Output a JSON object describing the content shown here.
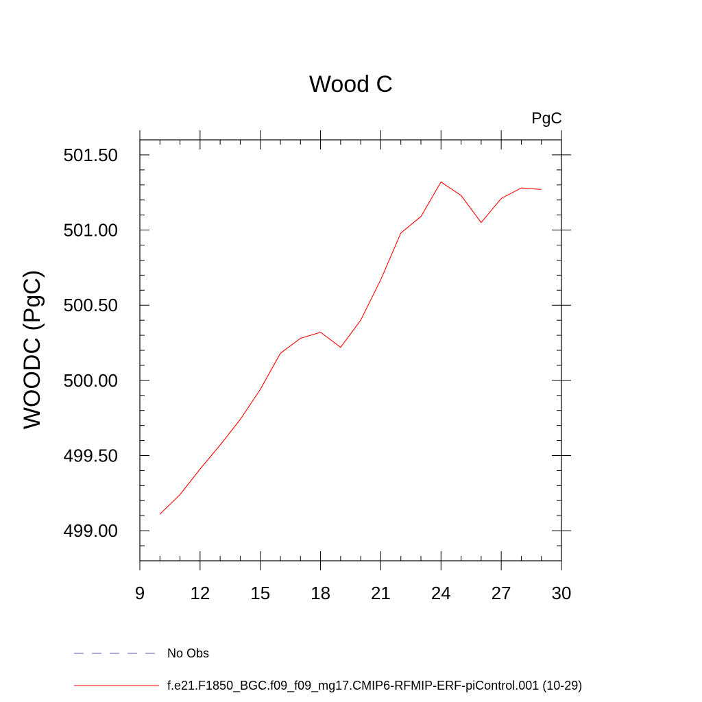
{
  "chart_data": {
    "type": "line",
    "title": "Wood C",
    "units_label": "PgC",
    "xlabel": "",
    "ylabel": "WOODC  (PgC)",
    "xlim": [
      9,
      30
    ],
    "ylim": [
      498.8,
      501.6
    ],
    "x_ticks": [
      9,
      12,
      15,
      18,
      21,
      24,
      27,
      30
    ],
    "x_tick_labels": [
      "9",
      "12",
      "15",
      "18",
      "21",
      "24",
      "27",
      "30"
    ],
    "y_ticks": [
      499.0,
      499.5,
      500.0,
      500.5,
      501.0,
      501.5
    ],
    "y_tick_labels": [
      "499.00",
      "499.50",
      "500.00",
      "500.50",
      "501.00",
      "501.50"
    ],
    "series": [
      {
        "name": "f.e21.F1850_BGC.f09_f09_mg17.CMIP6-RFMIP-ERF-piControl.001 (10-29)",
        "color": "#ff0000",
        "style": "solid",
        "x": [
          10,
          11,
          12,
          13,
          14,
          15,
          16,
          17,
          18,
          19,
          20,
          21,
          22,
          23,
          24,
          25,
          26,
          27,
          28,
          29
        ],
        "values": [
          499.11,
          499.24,
          499.41,
          499.57,
          499.74,
          499.94,
          500.18,
          500.28,
          500.32,
          500.22,
          500.4,
          500.67,
          500.98,
          501.09,
          501.32,
          501.23,
          501.05,
          501.21,
          501.28,
          501.27
        ]
      }
    ],
    "legend": {
      "placement": "bottom",
      "entries": [
        {
          "label": "No Obs",
          "color": "#6655aa",
          "style": "dashed"
        },
        {
          "label": "f.e21.F1850_BGC.f09_f09_mg17.CMIP6-RFMIP-ERF-piControl.001 (10-29)",
          "color": "#ff0000",
          "style": "solid"
        }
      ]
    },
    "grid": false
  }
}
